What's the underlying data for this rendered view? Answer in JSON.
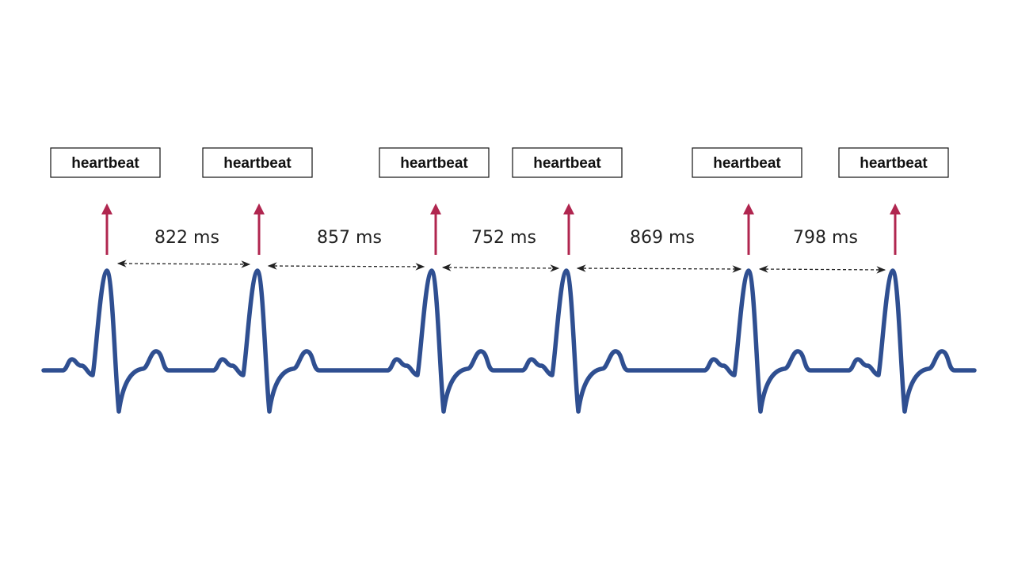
{
  "colors": {
    "ecg_trace": "#2f4f91",
    "arrow": "#b0264f",
    "interval_line": "#222222",
    "box_border": "#111111"
  },
  "beat_label": "heartbeat",
  "beats": [
    {
      "label": "heartbeat"
    },
    {
      "label": "heartbeat"
    },
    {
      "label": "heartbeat"
    },
    {
      "label": "heartbeat"
    },
    {
      "label": "heartbeat"
    },
    {
      "label": "heartbeat"
    }
  ],
  "intervals": [
    {
      "ms": 822,
      "label": "822 ms"
    },
    {
      "ms": 857,
      "label": "857 ms"
    },
    {
      "ms": 752,
      "label": "752 ms"
    },
    {
      "ms": 869,
      "label": "869 ms"
    },
    {
      "ms": 798,
      "label": "798 ms"
    }
  ]
}
